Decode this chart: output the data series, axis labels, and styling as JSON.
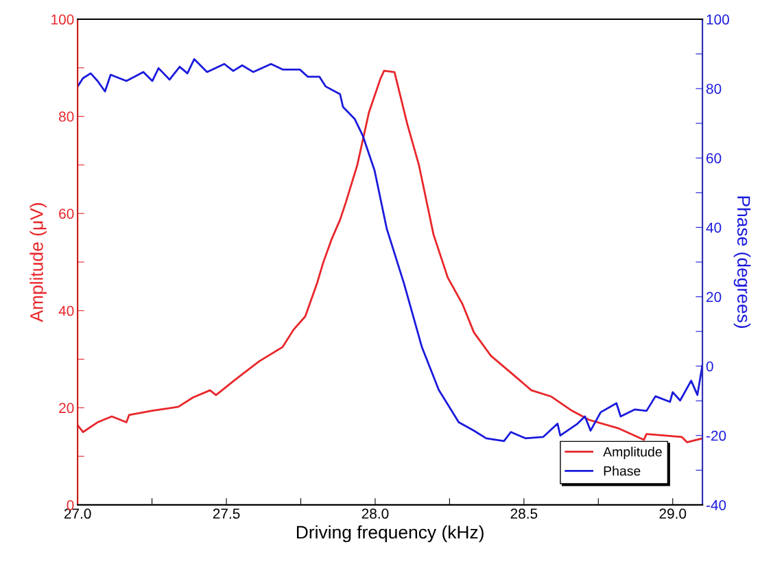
{
  "chart_data": {
    "type": "line",
    "xlabel": "Driving frequency (kHz)",
    "ylabel": "Amplitude (μV)",
    "y2label": "Phase (degrees)",
    "xlim": [
      27.0,
      29.1
    ],
    "xticks": [
      {
        "value": 27,
        "label": "27.0"
      },
      {
        "value": 27.25,
        "label": null
      },
      27.5,
      {
        "value": 27.75,
        "label": null
      },
      {
        "value": 28,
        "label": "28.0"
      },
      {
        "value": 28.25,
        "label": null
      },
      28.5,
      {
        "value": 28.75,
        "label": null
      },
      {
        "value": 29,
        "label": "29.0"
      }
    ],
    "ylim": [
      0,
      100
    ],
    "yticks": [
      0,
      {
        "value": 10,
        "label": null
      },
      20,
      {
        "value": 30,
        "label": null
      },
      40,
      {
        "value": 50,
        "label": null
      },
      60,
      {
        "value": 70,
        "label": null
      },
      80,
      {
        "value": 90,
        "label": null
      },
      100
    ],
    "y2lim": [
      -40,
      100
    ],
    "y2ticks": [
      -40,
      {
        "value": -30,
        "label": null
      },
      -20,
      {
        "value": -10,
        "label": null
      },
      0,
      {
        "value": 10,
        "label": null
      },
      20,
      {
        "value": 30,
        "label": null
      },
      40,
      {
        "value": 50,
        "label": null
      },
      60,
      {
        "value": 70,
        "label": null
      },
      80,
      {
        "value": 90,
        "label": null
      },
      100
    ],
    "legend": "bottom right",
    "grid": false,
    "marker": "none",
    "line_style": "solid",
    "series": [
      {
        "name": "Amplitude",
        "color": "#e8262a",
        "x": [
          27.0,
          27.018,
          27.067,
          27.115,
          27.164,
          27.173,
          27.251,
          27.339,
          27.387,
          27.445,
          27.465,
          27.532,
          27.611,
          27.689,
          27.726,
          27.765,
          27.804,
          27.825,
          27.853,
          27.882,
          27.901,
          27.94,
          27.979,
          28.018,
          28.03,
          28.065,
          28.108,
          28.147,
          28.196,
          28.244,
          28.293,
          28.332,
          28.389,
          28.447,
          28.525,
          28.592,
          28.661,
          28.719,
          28.816,
          28.903,
          28.912,
          29.03,
          29.048,
          29.1
        ],
        "values": [
          16.4,
          15.0,
          17.0,
          18.2,
          17.0,
          18.5,
          19.4,
          20.2,
          22.1,
          23.6,
          22.6,
          25.9,
          29.6,
          32.5,
          36.1,
          38.8,
          45.5,
          49.8,
          54.6,
          58.7,
          62.2,
          70.0,
          80.8,
          87.8,
          89.4,
          89.1,
          78.4,
          70.0,
          55.7,
          46.8,
          41.4,
          35.5,
          30.7,
          27.7,
          23.6,
          22.3,
          19.4,
          17.5,
          15.8,
          13.4,
          14.6,
          14.0,
          12.9,
          13.7
        ]
      },
      {
        "name": "Phase",
        "color": "#1a1adc",
        "axis": "y2",
        "x": [
          27.0,
          27.018,
          27.044,
          27.067,
          27.092,
          27.111,
          27.164,
          27.221,
          27.251,
          27.272,
          27.309,
          27.343,
          27.369,
          27.392,
          27.435,
          27.493,
          27.523,
          27.553,
          27.59,
          27.65,
          27.689,
          27.747,
          27.774,
          27.813,
          27.834,
          27.882,
          27.892,
          27.931,
          27.959,
          27.998,
          28.039,
          28.097,
          28.157,
          28.214,
          28.281,
          28.332,
          28.373,
          28.433,
          28.456,
          28.505,
          28.565,
          28.613,
          28.622,
          28.68,
          28.705,
          28.724,
          28.758,
          28.811,
          28.825,
          28.873,
          28.912,
          28.942,
          28.991,
          29.0,
          29.025,
          29.062,
          29.083,
          29.1
        ],
        "values": [
          80.6,
          83.0,
          84.4,
          82.2,
          79.2,
          84.0,
          82.2,
          84.8,
          82.2,
          85.9,
          82.6,
          86.3,
          84.4,
          88.5,
          84.8,
          87.1,
          85.1,
          86.7,
          84.8,
          87.1,
          85.5,
          85.5,
          83.4,
          83.4,
          80.6,
          78.4,
          74.7,
          71.3,
          66.3,
          56.4,
          39.6,
          23.8,
          5.5,
          -6.9,
          -16.2,
          -18.6,
          -20.8,
          -21.6,
          -19.0,
          -20.8,
          -20.4,
          -16.6,
          -20.0,
          -16.6,
          -14.5,
          -18.6,
          -13.3,
          -10.7,
          -14.5,
          -12.5,
          -12.9,
          -8.7,
          -10.3,
          -7.5,
          -9.9,
          -4.2,
          -8.3,
          0.4
        ]
      }
    ]
  }
}
